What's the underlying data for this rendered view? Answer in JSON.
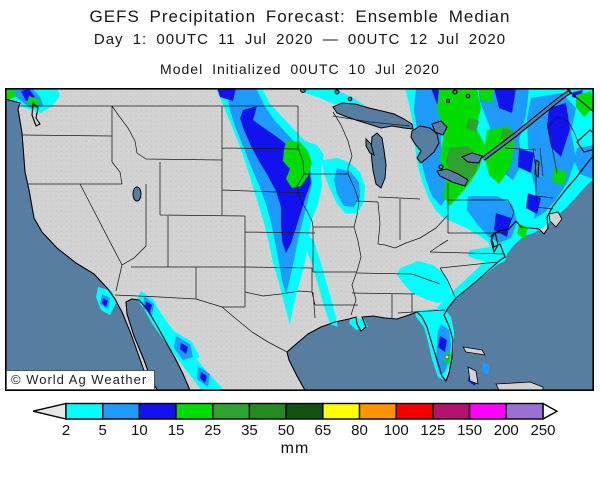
{
  "header": {
    "title": "GEFS Precipitation Forecast: Ensemble Median",
    "subtitle": "Day 1: 00UTC 11 Jul 2020 — 00UTC 12 Jul 2020",
    "initialized": "Model Initialized 00UTC 10 Jul 2020"
  },
  "map": {
    "copyright": "© World Ag Weather",
    "ocean_color": "#577ea0",
    "lake_color": "#577ea0",
    "land_color": "#d2d2d2"
  },
  "legend": {
    "unit": "mm",
    "values": [
      "2",
      "5",
      "10",
      "15",
      "25",
      "35",
      "50",
      "65",
      "80",
      "100",
      "125",
      "150",
      "200",
      "250"
    ],
    "colors": [
      "#00ffff",
      "#1f9aff",
      "#1212ee",
      "#00dc00",
      "#2fa32f",
      "#228b22",
      "#145214",
      "#ffff00",
      "#ff9400",
      "#f50000",
      "#b3126d",
      "#ff00ff",
      "#9a70d4"
    ],
    "arrow_left_color": "#e6e6e6",
    "arrow_right_color": "#ffffff"
  },
  "chart_data": {
    "type": "contour-map",
    "region": "Contiguous United States, southern Canada, northern Mexico",
    "variable": "24-hour precipitation (ensemble median)",
    "unit": "mm",
    "scale_values": [
      2,
      5,
      10,
      15,
      25,
      35,
      50,
      65,
      80,
      100,
      125,
      150,
      200,
      250
    ],
    "scale_colors": [
      "#00ffff",
      "#1f9aff",
      "#1212ee",
      "#00dc00",
      "#2fa32f",
      "#228b22",
      "#145214",
      "#ffff00",
      "#ff9400",
      "#f50000",
      "#b3126d",
      "#ff00ff",
      "#9a70d4"
    ],
    "max_category_on_map": "25-35 mm",
    "notable_areas": [
      "Pacific Northwest coast (WA / Vancouver Island): 2-25 mm",
      "Plains band from North Dakota through Nebraska-Iowa to Missouri: 2-15 mm with 15-25 mm core over E Nebraska / W Iowa",
      "Great Lakes, Ontario, Quebec, Northeast US: widespread 5-25 mm with 25-35 mm pockets near Lake Huron / S Ontario and upstate NY",
      "Northern Illinois / S Wisconsin: 2-15 mm pocket",
      "Georgia-Carolinas and Atlantic coast: 2-5 mm",
      "Florida peninsula: 2-15 mm with small 15-25 mm sliver",
      "Sierra Madre Occidental (NW Mexico) and far S California border: 2-15 mm spots"
    ]
  }
}
